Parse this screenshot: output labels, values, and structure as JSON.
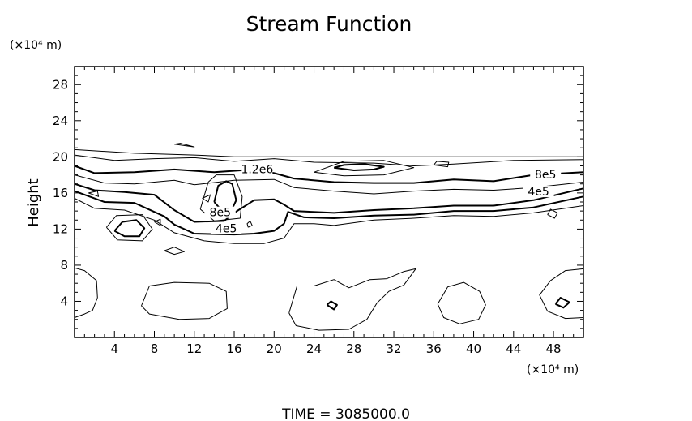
{
  "chart_data": {
    "type": "contour",
    "title": "Stream Function",
    "ylabel": "Height",
    "y_unit": "(×10⁴ m)",
    "x_unit": "(×10⁴ m)",
    "footer": "TIME  =  3085000.0",
    "xlim": [
      0,
      51
    ],
    "ylim": [
      0,
      30
    ],
    "x_ticks": [
      4,
      8,
      12,
      16,
      20,
      24,
      28,
      32,
      36,
      40,
      44,
      48
    ],
    "y_ticks": [
      4,
      8,
      12,
      16,
      20,
      24,
      28
    ],
    "contour_labels": [
      {
        "text": "1.2e6",
        "x": 18.3,
        "y": 18.3
      },
      {
        "text": "8e5",
        "x": 14.6,
        "y": 13.5
      },
      {
        "text": "4e5",
        "x": 15.2,
        "y": 11.7
      },
      {
        "text": "8e5",
        "x": 47.2,
        "y": 17.7
      },
      {
        "text": "4e5",
        "x": 46.5,
        "y": 15.8
      }
    ],
    "contours": [
      {
        "level": "thin",
        "points": [
          [
            0,
            20.8
          ],
          [
            6,
            20.4
          ],
          [
            12,
            20.2
          ],
          [
            16,
            20.0
          ],
          [
            24,
            20.0
          ],
          [
            32,
            20.0
          ],
          [
            40,
            20.0
          ],
          [
            51,
            20.0
          ]
        ]
      },
      {
        "level": "thin",
        "points": [
          [
            0,
            20.2
          ],
          [
            4,
            19.6
          ],
          [
            8,
            19.8
          ],
          [
            12,
            19.9
          ],
          [
            16,
            19.5
          ],
          [
            20,
            19.8
          ],
          [
            24,
            19.4
          ],
          [
            30,
            19.3
          ],
          [
            34,
            19.0
          ],
          [
            38,
            19.2
          ],
          [
            44,
            19.6
          ],
          [
            51,
            19.7
          ]
        ]
      },
      {
        "level": "thick",
        "points": [
          [
            0,
            19.0
          ],
          [
            2,
            18.2
          ],
          [
            6,
            18.3
          ],
          [
            10,
            18.6
          ],
          [
            14,
            18.3
          ],
          [
            18,
            18.6
          ],
          [
            20,
            18.2
          ],
          [
            22,
            17.6
          ],
          [
            26,
            17.2
          ],
          [
            30,
            17.1
          ],
          [
            34,
            17.1
          ],
          [
            38,
            17.5
          ],
          [
            42,
            17.3
          ],
          [
            46,
            18.0
          ],
          [
            51,
            18.3
          ]
        ]
      },
      {
        "level": "thin",
        "points": [
          [
            0,
            18.0
          ],
          [
            3,
            17.1
          ],
          [
            6,
            17.0
          ],
          [
            10,
            17.4
          ],
          [
            12,
            16.9
          ],
          [
            16,
            17.4
          ],
          [
            20,
            17.5
          ],
          [
            22,
            16.6
          ],
          [
            26,
            16.2
          ],
          [
            30,
            15.9
          ],
          [
            34,
            16.2
          ],
          [
            38,
            16.4
          ],
          [
            42,
            16.3
          ],
          [
            46,
            16.6
          ],
          [
            51,
            17.2
          ]
        ]
      },
      {
        "level": "thick",
        "points": [
          [
            0,
            17.0
          ],
          [
            2,
            16.3
          ],
          [
            5,
            16.1
          ],
          [
            8,
            15.8
          ],
          [
            10,
            14.1
          ],
          [
            12,
            12.8
          ],
          [
            15,
            12.9
          ],
          [
            16,
            13.8
          ],
          [
            18,
            15.2
          ],
          [
            20,
            15.3
          ],
          [
            21,
            14.7
          ],
          [
            22,
            14.0
          ],
          [
            26,
            13.8
          ],
          [
            30,
            14.1
          ],
          [
            34,
            14.3
          ],
          [
            38,
            14.6
          ],
          [
            42,
            14.6
          ],
          [
            46,
            15.2
          ],
          [
            51,
            16.5
          ]
        ]
      },
      {
        "level": "thick",
        "points": [
          [
            0,
            16.2
          ],
          [
            3,
            15.0
          ],
          [
            6,
            14.9
          ],
          [
            9,
            13.4
          ],
          [
            10,
            12.5
          ],
          [
            12,
            11.5
          ],
          [
            16,
            11.4
          ],
          [
            18,
            11.5
          ],
          [
            20,
            11.8
          ],
          [
            21,
            12.6
          ],
          [
            21.4,
            13.9
          ],
          [
            23,
            13.3
          ],
          [
            26,
            13.2
          ],
          [
            30,
            13.5
          ],
          [
            34,
            13.6
          ],
          [
            38,
            14.0
          ],
          [
            42,
            14.0
          ],
          [
            46,
            14.4
          ],
          [
            51,
            15.6
          ]
        ]
      },
      {
        "level": "thin",
        "points": [
          [
            0,
            15.4
          ],
          [
            2,
            14.3
          ],
          [
            5,
            14.1
          ],
          [
            8,
            13.0
          ],
          [
            10,
            11.6
          ],
          [
            13,
            10.7
          ],
          [
            16,
            10.4
          ],
          [
            19,
            10.4
          ],
          [
            21,
            11.0
          ],
          [
            22,
            12.6
          ],
          [
            24,
            12.6
          ],
          [
            26,
            12.4
          ],
          [
            30,
            13.0
          ],
          [
            34,
            13.2
          ],
          [
            38,
            13.5
          ],
          [
            42,
            13.4
          ],
          [
            46,
            13.8
          ],
          [
            51,
            14.6
          ]
        ]
      },
      {
        "level": "thick",
        "points": [
          [
            26,
            18.8
          ],
          [
            28,
            18.5
          ],
          [
            30,
            18.6
          ],
          [
            31,
            18.9
          ],
          [
            29,
            19.2
          ],
          [
            27,
            19.1
          ],
          [
            26,
            18.8
          ]
        ]
      },
      {
        "level": "thin",
        "points": [
          [
            24,
            18.3
          ],
          [
            27,
            17.9
          ],
          [
            31,
            18.0
          ],
          [
            34,
            18.8
          ],
          [
            31,
            19.6
          ],
          [
            27,
            19.5
          ],
          [
            24,
            18.3
          ]
        ]
      },
      {
        "level": "thick",
        "points": [
          [
            14.0,
            15.0
          ],
          [
            14.8,
            14.0
          ],
          [
            15.7,
            14.0
          ],
          [
            16.2,
            15.2
          ],
          [
            15.8,
            17.0
          ],
          [
            15.2,
            17.3
          ],
          [
            14.4,
            16.8
          ],
          [
            14.0,
            15.0
          ]
        ]
      },
      {
        "level": "thin",
        "points": [
          [
            12.6,
            14.2
          ],
          [
            14.0,
            12.9
          ],
          [
            16.6,
            13.2
          ],
          [
            16.8,
            15.6
          ],
          [
            16.0,
            18.0
          ],
          [
            14.2,
            18.0
          ],
          [
            13.4,
            17.2
          ],
          [
            12.6,
            14.2
          ]
        ]
      },
      {
        "level": "thick",
        "points": [
          [
            4.0,
            11.8
          ],
          [
            5.0,
            11.2
          ],
          [
            6.5,
            11.2
          ],
          [
            7.0,
            12.1
          ],
          [
            6.2,
            13.0
          ],
          [
            4.8,
            12.8
          ],
          [
            4.0,
            11.8
          ]
        ]
      },
      {
        "level": "thin",
        "points": [
          [
            3.2,
            12.2
          ],
          [
            4.3,
            10.8
          ],
          [
            6.8,
            10.7
          ],
          [
            7.8,
            12.0
          ],
          [
            6.8,
            13.6
          ],
          [
            4.2,
            13.5
          ],
          [
            3.2,
            12.2
          ]
        ]
      },
      {
        "level": "thin",
        "points": [
          [
            8,
            12.8
          ],
          [
            8.6,
            12.4
          ],
          [
            8.6,
            13.1
          ],
          [
            8,
            12.8
          ]
        ]
      },
      {
        "level": "thin",
        "points": [
          [
            12.8,
            15.4
          ],
          [
            13.4,
            15.0
          ],
          [
            13.6,
            15.8
          ],
          [
            12.8,
            15.4
          ]
        ]
      },
      {
        "level": "thin",
        "points": [
          [
            17.4,
            12.2
          ],
          [
            17.8,
            12.4
          ],
          [
            17.6,
            12.9
          ],
          [
            17.3,
            12.6
          ],
          [
            17.4,
            12.2
          ]
        ]
      },
      {
        "level": "thin",
        "points": [
          [
            10,
            21.4
          ],
          [
            12,
            21.1
          ],
          [
            10.6,
            21.5
          ],
          [
            10,
            21.4
          ]
        ]
      },
      {
        "level": "thin",
        "points": [
          [
            36,
            19.1
          ],
          [
            37.4,
            18.9
          ],
          [
            37.5,
            19.4
          ],
          [
            36.3,
            19.5
          ],
          [
            36,
            19.1
          ]
        ]
      },
      {
        "level": "thin",
        "points": [
          [
            47.4,
            13.6
          ],
          [
            48.1,
            13.2
          ],
          [
            48.4,
            13.8
          ],
          [
            47.7,
            14.2
          ],
          [
            47.4,
            13.6
          ]
        ]
      },
      {
        "level": "thin",
        "points": [
          [
            1.4,
            16.0
          ],
          [
            2.4,
            15.6
          ],
          [
            2.3,
            16.2
          ],
          [
            1.4,
            16.0
          ]
        ]
      },
      {
        "level": "thin",
        "points": [
          [
            9,
            9.6
          ],
          [
            10,
            9.2
          ],
          [
            11,
            9.5
          ],
          [
            10,
            10
          ],
          [
            9,
            9.6
          ]
        ]
      },
      {
        "level": "thin",
        "points": [
          [
            6.7,
            3.5
          ],
          [
            7.5,
            2.6
          ],
          [
            10.5,
            2.0
          ],
          [
            13.5,
            2.1
          ],
          [
            15.3,
            3.2
          ],
          [
            15.2,
            5.1
          ],
          [
            13.5,
            6.0
          ],
          [
            10,
            6.1
          ],
          [
            7.5,
            5.7
          ],
          [
            6.7,
            3.5
          ]
        ]
      },
      {
        "level": "thin",
        "points": [
          [
            0,
            7.7
          ],
          [
            1.0,
            7.4
          ],
          [
            2.2,
            6.3
          ],
          [
            2.3,
            4.4
          ],
          [
            1.8,
            3.0
          ],
          [
            1.0,
            2.6
          ],
          [
            0,
            2.2
          ]
        ]
      },
      {
        "level": "thin",
        "points": [
          [
            21.5,
            2.7
          ],
          [
            22.2,
            1.3
          ],
          [
            24.5,
            0.8
          ],
          [
            27.5,
            0.9
          ],
          [
            29.3,
            2.0
          ],
          [
            30.3,
            3.8
          ],
          [
            31.5,
            5.1
          ],
          [
            33.0,
            5.8
          ],
          [
            34.2,
            7.6
          ],
          [
            33.0,
            7.3
          ],
          [
            31.3,
            6.5
          ],
          [
            29.6,
            6.4
          ],
          [
            27.5,
            5.5
          ],
          [
            26,
            6.4
          ],
          [
            24,
            5.7
          ],
          [
            22.3,
            5.7
          ],
          [
            21.5,
            2.7
          ]
        ]
      },
      {
        "level": "thick",
        "points": [
          [
            25.3,
            3.6
          ],
          [
            26.0,
            3.1
          ],
          [
            26.3,
            3.6
          ],
          [
            25.7,
            4.0
          ],
          [
            25.3,
            3.6
          ]
        ]
      },
      {
        "level": "thin",
        "points": [
          [
            36.4,
            3.7
          ],
          [
            37.4,
            5.6
          ],
          [
            39.0,
            6.1
          ],
          [
            40.6,
            5.1
          ],
          [
            41.2,
            3.6
          ],
          [
            40.5,
            2.0
          ],
          [
            38.6,
            1.5
          ],
          [
            37.0,
            2.2
          ],
          [
            36.4,
            3.7
          ]
        ]
      },
      {
        "level": "thin",
        "points": [
          [
            51,
            7.6
          ],
          [
            49.2,
            7.4
          ],
          [
            47.7,
            6.3
          ],
          [
            46.6,
            4.7
          ],
          [
            47.4,
            2.9
          ],
          [
            49.2,
            2.1
          ],
          [
            51,
            2.2
          ]
        ]
      },
      {
        "level": "thick",
        "points": [
          [
            48.2,
            3.7
          ],
          [
            49.0,
            3.3
          ],
          [
            49.6,
            3.9
          ],
          [
            48.7,
            4.4
          ],
          [
            48.2,
            3.7
          ]
        ]
      }
    ]
  }
}
